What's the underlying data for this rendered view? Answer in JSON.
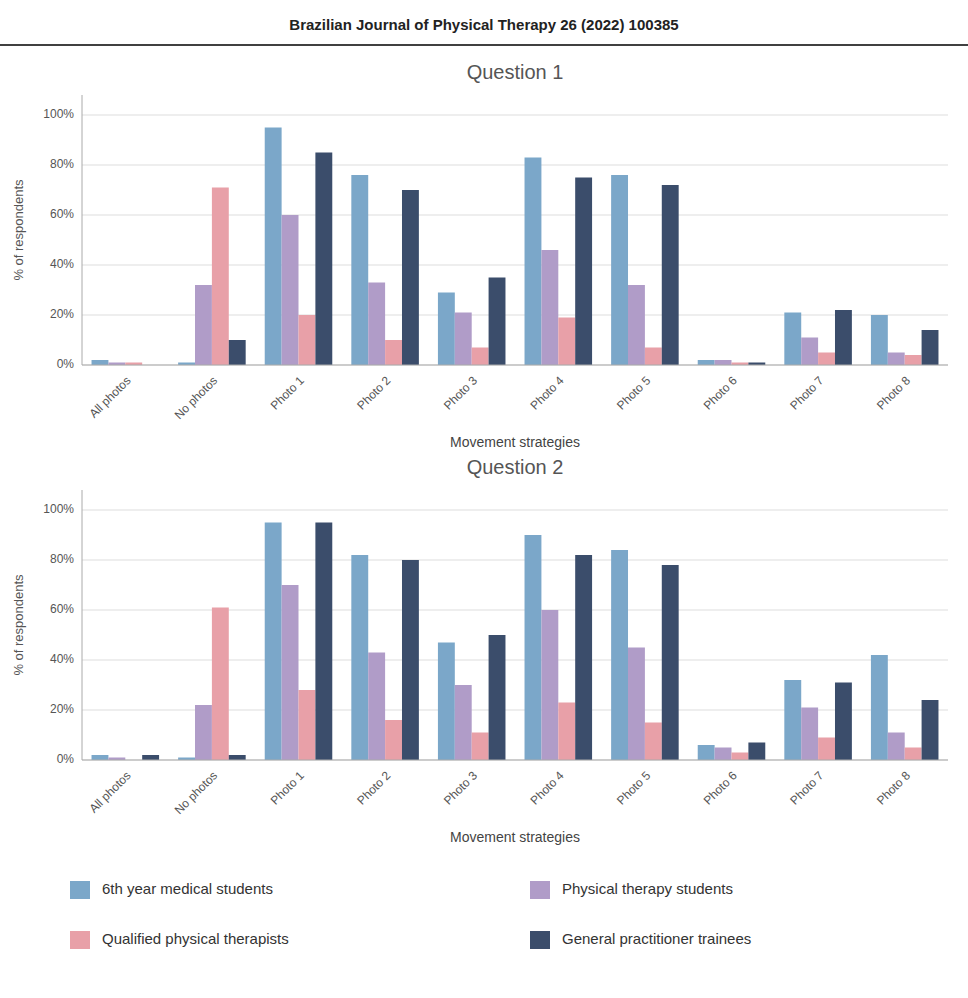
{
  "chart_data": [
    {
      "type": "bar",
      "title": "Question 1",
      "annotations": [
        "Brazilian Journal of Physical Therapy 26 (2022) 100385"
      ],
      "x_label": "Movement strategies",
      "y_label": "% of respondents",
      "categories": [
        "All photos",
        "No photos",
        "Photo 1",
        "Photo 2",
        "Photo 3",
        "Photo 4",
        "Photo 5",
        "Photo 6",
        "Photo 7",
        "Photo 8"
      ],
      "series": [
        {
          "name": "6th year medical students",
          "color": "#7ba7c9",
          "values": [
            2,
            1,
            95,
            76,
            29,
            83,
            76,
            2,
            21,
            20
          ]
        },
        {
          "name": "Physical therapy students",
          "color": "#b09cc8",
          "values": [
            1,
            32,
            60,
            33,
            21,
            46,
            32,
            2,
            11,
            5
          ]
        },
        {
          "name": "Qualified physical therapists",
          "color": "#e8a0a8",
          "values": [
            1,
            71,
            20,
            10,
            7,
            19,
            7,
            1,
            5,
            4
          ]
        },
        {
          "name": "General practitioner trainees",
          "color": "#3b4d6b",
          "values": [
            0,
            10,
            85,
            70,
            35,
            75,
            72,
            1,
            22,
            14
          ]
        }
      ],
      "ylim": [
        0,
        108
      ],
      "yticks": [
        {
          "value": 0,
          "label": "0%"
        },
        {
          "value": 20,
          "label": "20%"
        },
        {
          "value": 40,
          "label": "40%"
        },
        {
          "value": 60,
          "label": "60%"
        },
        {
          "value": 80,
          "label": "80%"
        },
        {
          "value": 100,
          "label": "100%"
        }
      ],
      "grid": true,
      "legend": "bottom"
    },
    {
      "type": "bar",
      "title": "Question 2",
      "x_label": "Movement strategies",
      "y_label": "% of respondents",
      "categories": [
        "All photos",
        "No photos",
        "Photo 1",
        "Photo 2",
        "Photo 3",
        "Photo 4",
        "Photo 5",
        "Photo 6",
        "Photo 7",
        "Photo 8"
      ],
      "series": [
        {
          "name": "6th year medical students",
          "color": "#7ba7c9",
          "values": [
            2,
            1,
            95,
            82,
            47,
            90,
            84,
            6,
            32,
            42
          ]
        },
        {
          "name": "Physical therapy students",
          "color": "#b09cc8",
          "values": [
            1,
            22,
            70,
            43,
            30,
            60,
            45,
            5,
            21,
            11
          ]
        },
        {
          "name": "Qualified physical therapists",
          "color": "#e8a0a8",
          "values": [
            0,
            61,
            28,
            16,
            11,
            23,
            15,
            3,
            9,
            5
          ]
        },
        {
          "name": "General practitioner trainees",
          "color": "#3b4d6b",
          "values": [
            2,
            2,
            95,
            80,
            50,
            82,
            78,
            7,
            31,
            24
          ]
        }
      ],
      "ylim": [
        0,
        108
      ],
      "yticks": [
        {
          "value": 0,
          "label": "0%"
        },
        {
          "value": 20,
          "label": "20%"
        },
        {
          "value": 40,
          "label": "40%"
        },
        {
          "value": 60,
          "label": "60%"
        },
        {
          "value": 80,
          "label": "80%"
        },
        {
          "value": 100,
          "label": "100%"
        }
      ],
      "grid": true,
      "legend": "bottom"
    }
  ]
}
